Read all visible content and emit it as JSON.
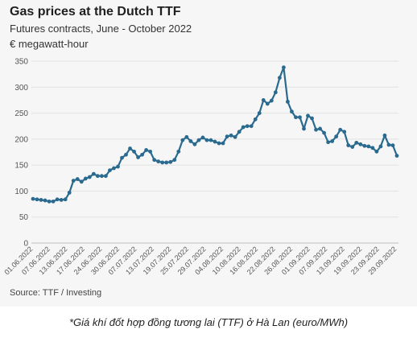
{
  "chart_data": {
    "type": "line",
    "title": "Gas prices at the Dutch TTF",
    "subtitle": "Futures contracts, June - October 2022",
    "ylabel": "€ megawatt-hour",
    "source": "Source: TTF / Investing",
    "ylim": [
      0,
      350
    ],
    "yticks": [
      0,
      50,
      100,
      150,
      200,
      250,
      300,
      350
    ],
    "grid": true,
    "line_color": "#2b6a8f",
    "xticks": [
      "01.06.2022",
      "07.06.2022",
      "13.06.2022",
      "17.06.2022",
      "24.06.2022",
      "30.06.2022",
      "07.07.2022",
      "13.07.2022",
      "19.07.2022",
      "25.07.2022",
      "29.07.2022",
      "04.08.2022",
      "10.08.2022",
      "16.08.2022",
      "22.08.2022",
      "26.08.2022",
      "01.09.2022",
      "07.09.2022",
      "13.09.2022",
      "19.09.2022",
      "23.09.2022",
      "29.09.2022"
    ],
    "values": [
      85,
      84,
      83,
      82,
      80,
      80,
      84,
      83,
      84,
      97,
      120,
      123,
      118,
      124,
      127,
      133,
      129,
      129,
      129,
      140,
      144,
      147,
      164,
      170,
      182,
      176,
      165,
      170,
      179,
      176,
      160,
      157,
      155,
      155,
      156,
      160,
      176,
      198,
      204,
      196,
      190,
      198,
      203,
      198,
      198,
      195,
      192,
      192,
      205,
      207,
      204,
      214,
      223,
      225,
      225,
      238,
      250,
      275,
      268,
      274,
      290,
      318,
      338,
      272,
      253,
      242,
      242,
      220,
      245,
      240,
      218,
      220,
      212,
      194,
      196,
      205,
      218,
      214,
      188,
      185,
      193,
      190,
      187,
      186,
      183,
      176,
      186,
      207,
      189,
      188,
      168
    ]
  },
  "caption": "*Giá khí đốt hợp đồng tương lai (TTF) ở Hà Lan (euro/MWh)"
}
